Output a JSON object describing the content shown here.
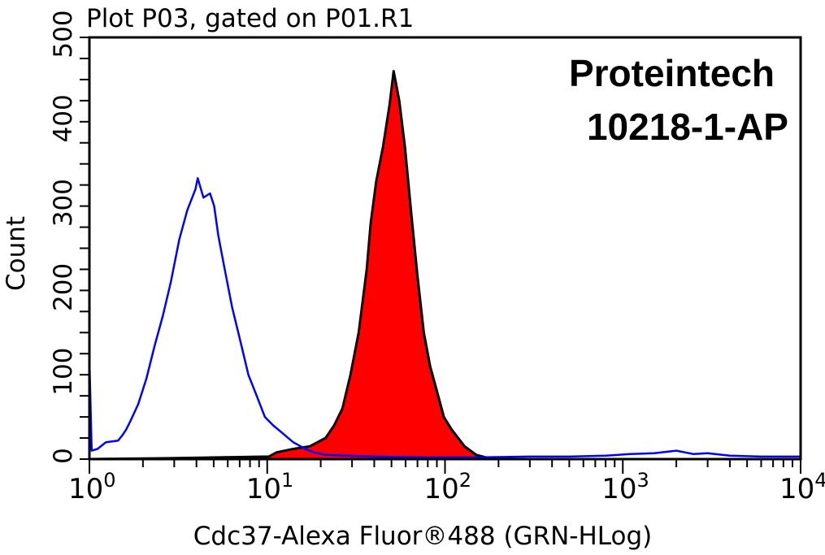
{
  "chart_data": {
    "type": "area",
    "title": "Plot P03, gated on P01.R1",
    "xlabel": "Cdc37-Alexa Fluor®488 (GRN-HLog)",
    "ylabel": "Count",
    "xscale": "log",
    "xlim": [
      1,
      10000
    ],
    "ylim": [
      0,
      500
    ],
    "x_tick_labels": [
      {
        "base": "10",
        "exp": "0"
      },
      {
        "base": "10",
        "exp": "1"
      },
      {
        "base": "10",
        "exp": "2"
      },
      {
        "base": "10",
        "exp": "3"
      },
      {
        "base": "10",
        "exp": "4"
      }
    ],
    "y_ticks": [
      0,
      100,
      200,
      300,
      400,
      500
    ],
    "y_tick_labels": [
      "0",
      "100",
      "200",
      "300",
      "400",
      "500"
    ],
    "grid": false,
    "annotations": [
      "Proteintech",
      "10218-1-AP"
    ],
    "series": [
      {
        "style": "outline",
        "color": "#0000ff",
        "x": [
          1.0,
          1.03,
          1.11,
          1.24,
          1.45,
          1.53,
          1.61,
          1.7,
          1.88,
          2.09,
          2.33,
          2.59,
          2.87,
          3.2,
          3.55,
          3.95,
          4.07,
          4.38,
          4.77,
          5.03,
          5.31,
          5.71,
          6.35,
          7.06,
          7.84,
          8.73,
          9.7,
          10.8,
          12.0,
          14.0,
          16.4,
          18.3,
          21.3,
          40,
          80,
          150,
          300,
          500,
          800,
          1100,
          1500,
          2000,
          2500,
          3000,
          4000,
          6000,
          10000
        ],
        "y": [
          118,
          10,
          12,
          20,
          22,
          28,
          35,
          45,
          65,
          95,
          135,
          170,
          210,
          260,
          295,
          320,
          333,
          310,
          315,
          300,
          265,
          230,
          180,
          140,
          100,
          75,
          50,
          40,
          32,
          20,
          12,
          8,
          5,
          3,
          2,
          2,
          3,
          3,
          4,
          6,
          7,
          10,
          6,
          7,
          4,
          3,
          3
        ]
      },
      {
        "style": "filled",
        "color": "#ff0000",
        "outline_color": "#000000",
        "x": [
          1.0,
          2.59,
          10.2,
          11.3,
          14.0,
          17.3,
          21.3,
          23.8,
          26.5,
          29.4,
          32.7,
          36.3,
          38.2,
          41.1,
          44.8,
          48.8,
          51.4,
          55.3,
          59.5,
          64.7,
          69.8,
          76.0,
          82.5,
          88.9,
          98.5,
          109,
          129,
          150,
          177,
          218,
          10000
        ],
        "y": [
          0,
          1,
          3,
          8,
          12,
          15,
          25,
          40,
          60,
          100,
          150,
          225,
          280,
          330,
          370,
          420,
          460,
          425,
          370,
          290,
          220,
          150,
          110,
          85,
          50,
          35,
          15,
          5,
          1,
          0,
          0
        ]
      }
    ]
  }
}
